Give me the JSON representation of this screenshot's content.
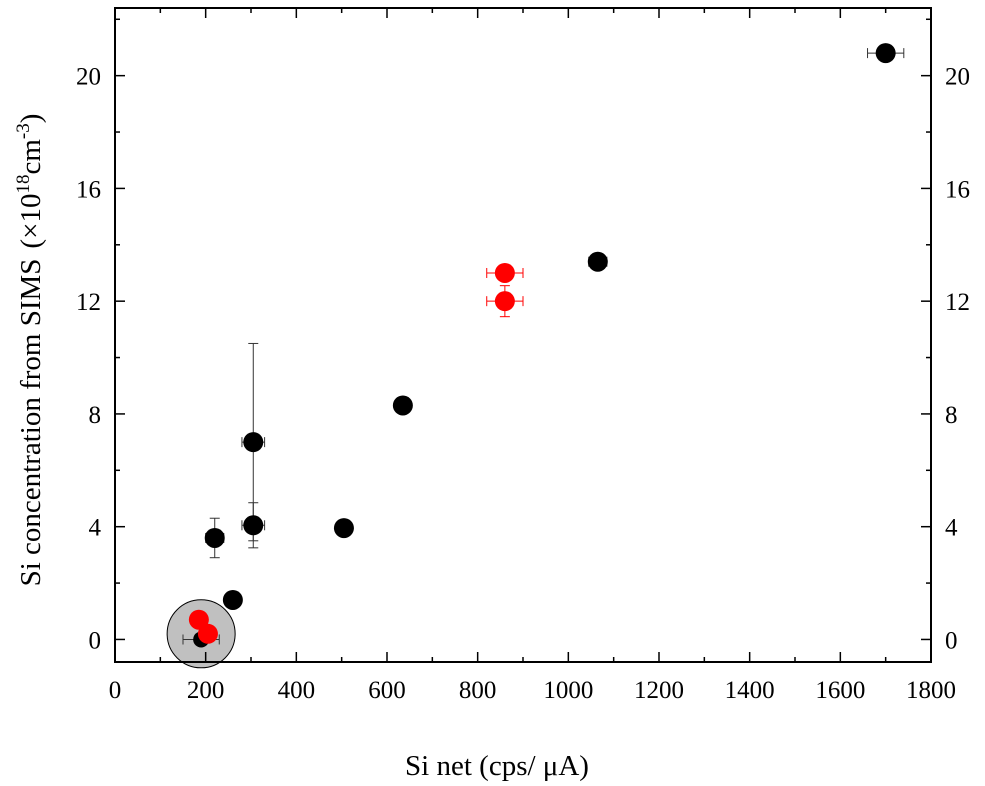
{
  "chart_data": {
    "type": "scatter",
    "title": "",
    "xlabel": "Si net (cps/ μA)",
    "ylabel": {
      "main": "Si concentration from SIMS",
      "unit_open": "(×10",
      "unit_exp1": "18",
      "unit_mid": "cm",
      "unit_exp2": "-3",
      "unit_close": ")"
    },
    "xlim": [
      0,
      1800
    ],
    "ylim": [
      -0.8,
      22.4
    ],
    "x_ticks": [
      0,
      200,
      400,
      600,
      800,
      1000,
      1200,
      1400,
      1600,
      1800
    ],
    "y_ticks": [
      0,
      4,
      8,
      12,
      16,
      20
    ],
    "right_axis_mirrored": true,
    "grid": false,
    "legend": "none",
    "highlight_region": {
      "shape": "circle",
      "center_x": 190,
      "center_y": 0.2,
      "color": "#c0c0c0"
    },
    "series": [
      {
        "color": "#000000",
        "points": [
          {
            "x": 190,
            "y": 0.0,
            "xerr": 40,
            "yerr": 0
          },
          {
            "x": 260,
            "y": 1.4,
            "xerr": 10,
            "yerr": 0.15
          },
          {
            "x": 220,
            "y": 3.6,
            "xerr": 20,
            "yerr": 0.7
          },
          {
            "x": 305,
            "y": 7.0,
            "xerr": 25,
            "yerr": 3.5
          },
          {
            "x": 305,
            "y": 4.05,
            "xerr": 25,
            "yerr": 0.8
          },
          {
            "x": 505,
            "y": 3.95,
            "xerr": 15,
            "yerr": 0.1
          },
          {
            "x": 635,
            "y": 8.3,
            "xerr": 15,
            "yerr": 0.15
          },
          {
            "x": 1065,
            "y": 13.4,
            "xerr": 20,
            "yerr": 0.15
          },
          {
            "x": 1700,
            "y": 20.8,
            "xerr": 40,
            "yerr": 0.1
          }
        ]
      },
      {
        "color": "#ff0000",
        "points": [
          {
            "x": 185,
            "y": 0.7,
            "xerr": 0,
            "yerr": 0
          },
          {
            "x": 205,
            "y": 0.2,
            "xerr": 0,
            "yerr": 0
          },
          {
            "x": 860,
            "y": 13.0,
            "xerr": 40,
            "yerr": 0.25
          },
          {
            "x": 860,
            "y": 12.0,
            "xerr": 40,
            "yerr": 0.55
          }
        ]
      }
    ]
  }
}
